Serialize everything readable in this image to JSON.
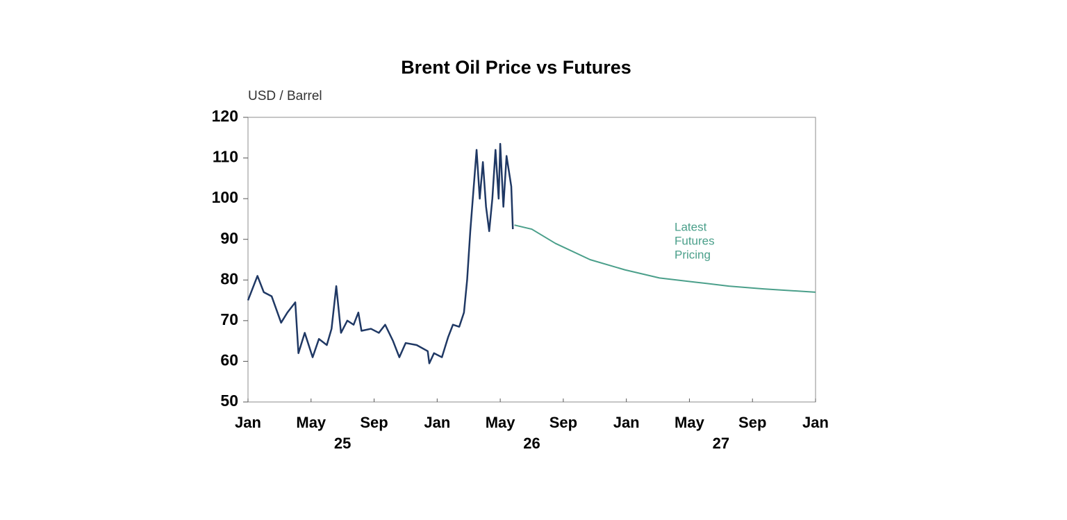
{
  "chart_data": {
    "type": "line",
    "title": "Brent Oil Price vs Futures",
    "y_label": "USD / Barrel",
    "ylim": [
      50,
      120
    ],
    "yticks": [
      50,
      60,
      70,
      80,
      90,
      100,
      110,
      120
    ],
    "xlim": [
      0,
      36
    ],
    "xticks": [
      {
        "value": 0,
        "label": "Jan"
      },
      {
        "value": 4,
        "label": "May"
      },
      {
        "value": 8,
        "label": "Sep"
      },
      {
        "value": 12,
        "label": "Jan"
      },
      {
        "value": 16,
        "label": "May"
      },
      {
        "value": 20,
        "label": "Sep"
      },
      {
        "value": 24,
        "label": "Jan"
      },
      {
        "value": 28,
        "label": "May"
      },
      {
        "value": 32,
        "label": "Sep"
      },
      {
        "value": 36,
        "label": "Jan"
      }
    ],
    "year_labels": [
      "25",
      "26",
      "27"
    ],
    "annotation": [
      "Latest",
      "Futures",
      "Pricing"
    ],
    "annotation_color": "#4a9f8a",
    "series": [
      {
        "color": "#1f3864",
        "x": [
          0,
          0.6,
          1.0,
          1.5,
          2.1,
          2.5,
          3.0,
          3.2,
          3.6,
          4.1,
          4.5,
          5.0,
          5.3,
          5.6,
          5.9,
          6.3,
          6.7,
          7.0,
          7.2,
          7.8,
          8.3,
          8.7,
          9.2,
          9.6,
          10.0,
          10.7,
          11.4,
          11.5,
          11.8,
          12.3,
          12.7,
          13.0,
          13.4,
          13.7,
          13.9,
          14.1,
          14.3,
          14.5,
          14.7,
          14.9,
          15.1,
          15.3,
          15.5,
          15.7,
          15.9,
          16.0,
          16.2,
          16.4,
          16.7,
          16.8
        ],
        "values": [
          75,
          81,
          77,
          76,
          69.5,
          72,
          74.5,
          62,
          67,
          61,
          65.5,
          64,
          68,
          78.5,
          67,
          70,
          69,
          72,
          67.5,
          68,
          67,
          69,
          65,
          61,
          64.5,
          64,
          62.5,
          59.5,
          62,
          61,
          66,
          69,
          68.5,
          72,
          80,
          92,
          102,
          112,
          100,
          109,
          98,
          92,
          100,
          112,
          100,
          113.5,
          98,
          110.5,
          103,
          92.5
        ]
      },
      {
        "color": "#4a9f8a",
        "x": [
          16.9,
          18.0,
          19.5,
          21.7,
          23.9,
          26.1,
          28.3,
          30.5,
          32.7,
          36
        ],
        "values": [
          93.5,
          92.5,
          89,
          85,
          82.5,
          80.5,
          79.5,
          78.5,
          77.8,
          77
        ]
      }
    ]
  }
}
